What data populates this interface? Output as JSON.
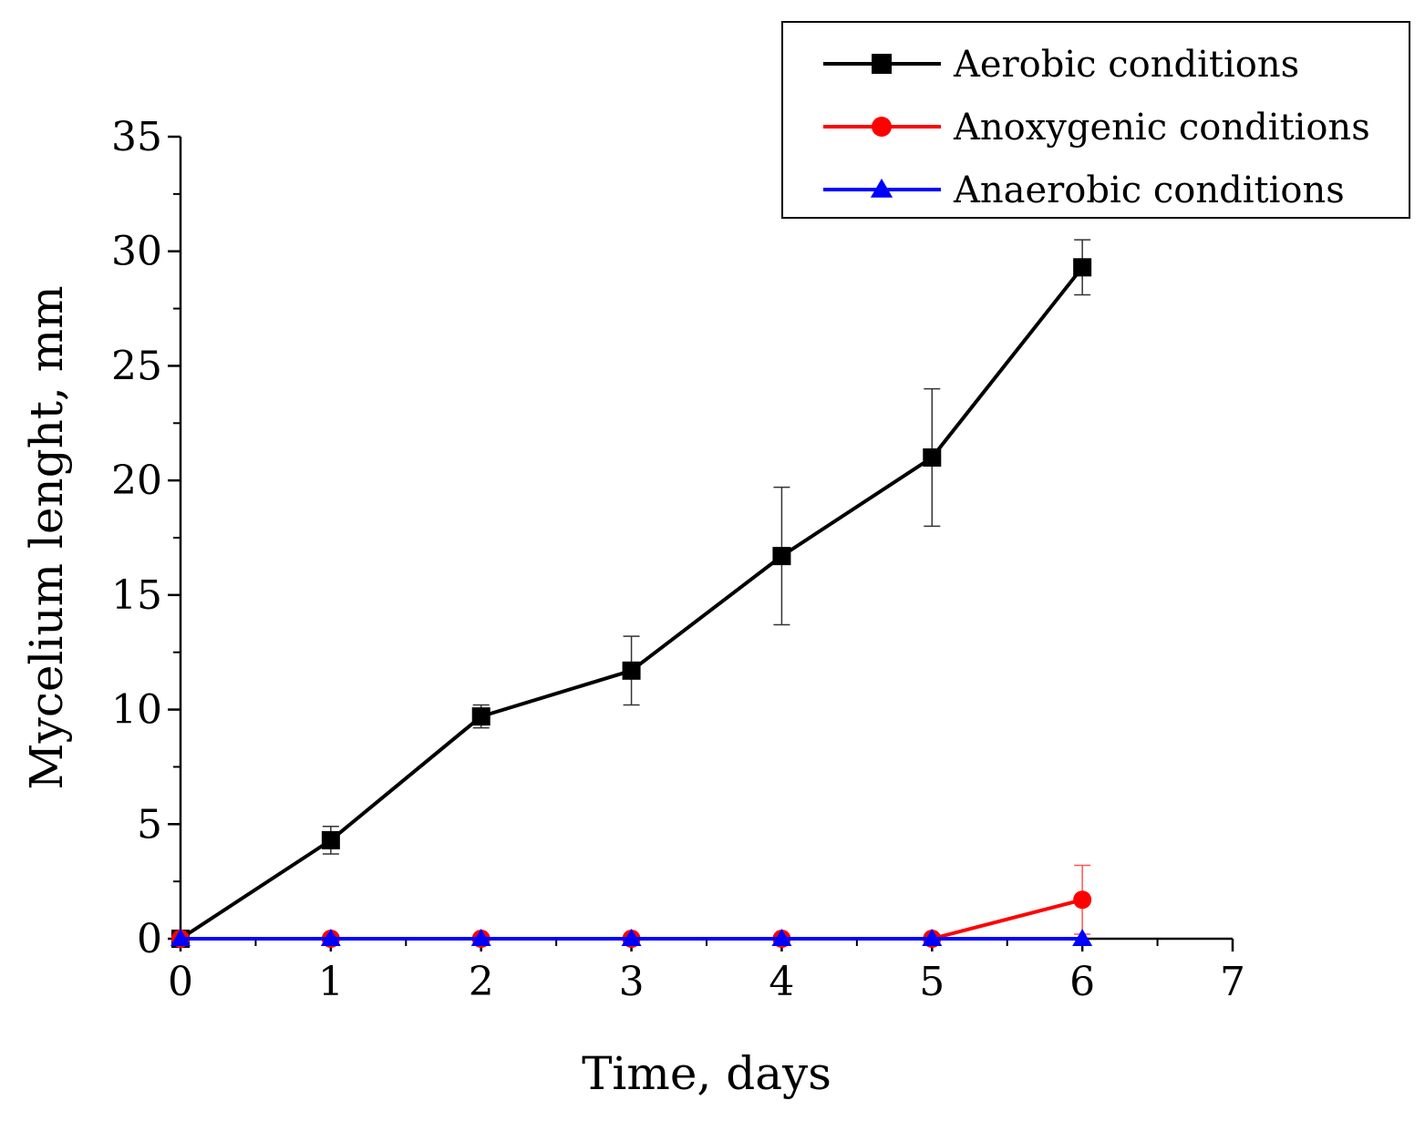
{
  "chart_data": {
    "type": "line",
    "title": "",
    "xlabel": "Time, days",
    "ylabel": "Mycelium lenght, mm",
    "xlim": [
      0,
      7
    ],
    "ylim": [
      0,
      35
    ],
    "xticks": [
      0,
      1,
      2,
      3,
      4,
      5,
      6,
      7
    ],
    "yticks": [
      0,
      5,
      10,
      15,
      20,
      25,
      30,
      35
    ],
    "grid": false,
    "legend_position": "top-right",
    "series": [
      {
        "name": "Aerobic conditions",
        "color": "#000000",
        "marker": "square",
        "x": [
          0,
          1,
          2,
          3,
          4,
          5,
          6
        ],
        "y": [
          0,
          4.3,
          9.7,
          11.7,
          16.7,
          21.0,
          29.3
        ],
        "err": [
          0,
          0.6,
          0.5,
          1.5,
          3.0,
          3.0,
          1.2
        ]
      },
      {
        "name": "Anoxygenic conditions",
        "color": "#ff0000",
        "marker": "circle",
        "x": [
          0,
          1,
          2,
          3,
          4,
          5,
          6
        ],
        "y": [
          0,
          0,
          0,
          0,
          0,
          0,
          1.7
        ],
        "err": [
          0,
          0,
          0,
          0,
          0,
          0,
          1.5
        ]
      },
      {
        "name": "Anaerobic conditions",
        "color": "#0000ff",
        "marker": "triangle",
        "x": [
          0,
          1,
          2,
          3,
          4,
          5,
          6
        ],
        "y": [
          0,
          0,
          0,
          0,
          0,
          0,
          0
        ],
        "err": [
          0,
          0,
          0,
          0,
          0,
          0,
          0
        ]
      }
    ]
  }
}
